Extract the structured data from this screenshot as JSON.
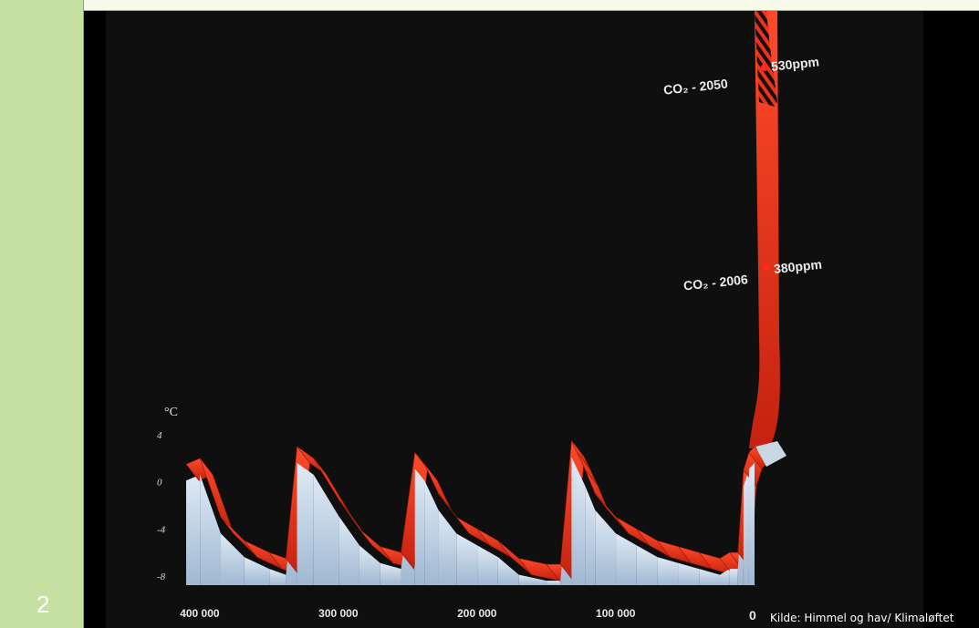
{
  "slide": {
    "number": "2"
  },
  "chart_data": {
    "type": "area",
    "unit_label": "°C",
    "y_ticks": [
      "4",
      "0",
      "-4",
      "-8"
    ],
    "ylim": [
      -8,
      4
    ],
    "x_tick_labels": [
      "400 000",
      "300 000",
      "200 000",
      "100 000",
      "0"
    ],
    "x_ticks": [
      400000,
      300000,
      200000,
      100000,
      0
    ],
    "xlim": [
      410000,
      0
    ],
    "series": [
      {
        "x": [
          410000,
          400000,
          385000,
          368000,
          350000,
          338000,
          330000,
          318000,
          300000,
          285000,
          270000,
          255000,
          245000,
          238000,
          228000,
          215000,
          200000,
          185000,
          170000,
          150000,
          140000,
          132000,
          128000,
          122000,
          115000,
          100000,
          85000,
          70000,
          55000,
          40000,
          25000,
          18000,
          12000,
          8000,
          4000,
          0
        ],
        "values": [
          1.5,
          2.0,
          -3.0,
          -5.0,
          -6.0,
          -6.5,
          3.0,
          2.0,
          -1.5,
          -4.0,
          -5.5,
          -6.0,
          2.5,
          1.5,
          -1.0,
          -3.0,
          -4.0,
          -5.0,
          -6.5,
          -7.0,
          -7.0,
          3.5,
          2.5,
          1.0,
          -1.0,
          -3.0,
          -4.0,
          -5.0,
          -5.5,
          -6.0,
          -6.5,
          -6.0,
          -6.0,
          1.0,
          2.5,
          3.0
        ]
      }
    ],
    "annotations": [
      {
        "label": "CO₂ - 2050",
        "value": "530ppm"
      },
      {
        "label": "CO₂ - 2006",
        "value": "380ppm"
      }
    ],
    "source": "Kilde: Himmel og hav/ Klimaløftet",
    "colors": {
      "ribbon_top": "#e8341f",
      "ribbon_side": "#b7cfe6",
      "background": "#0f0f10"
    }
  }
}
